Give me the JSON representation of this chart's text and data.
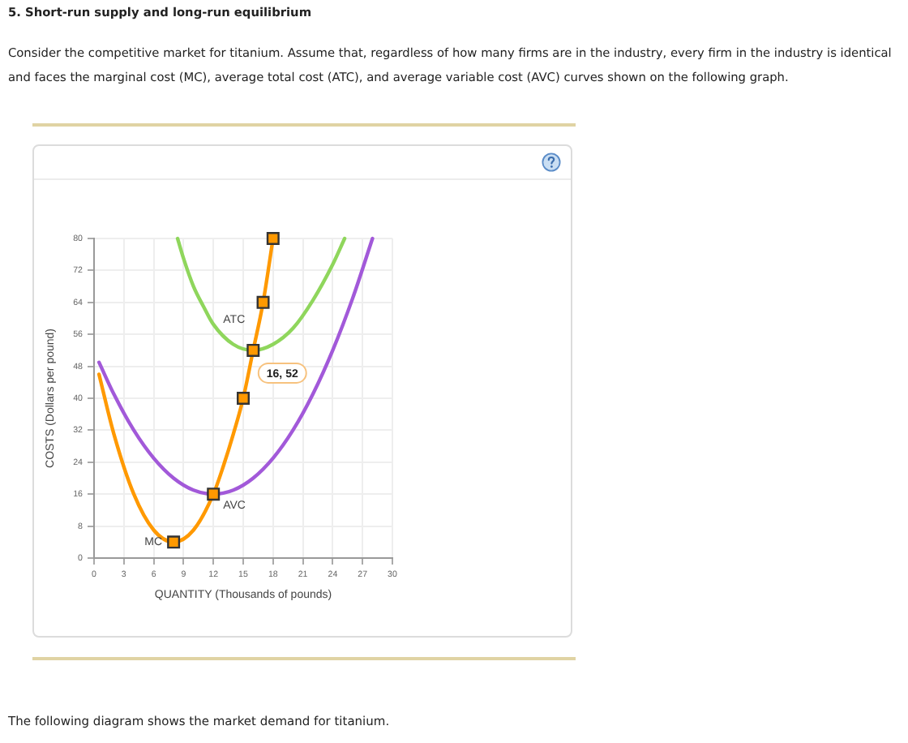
{
  "chart_data": {
    "type": "line",
    "title": "5. Short-run supply and long-run equilibrium",
    "subtitle": "Consider the competitive market for titanium. Assume that, regardless of how many firms are in the industry, every firm in the industry is identical and faces the marginal cost (MC), average total cost (ATC), and average variable cost (AVC) curves shown on the following graph.",
    "xlabel": "QUANTITY (Thousands of pounds)",
    "ylabel": "COSTS (Dollars per pound)",
    "xlim": [
      0,
      30
    ],
    "xticks": [
      0,
      3,
      6,
      9,
      12,
      15,
      18,
      21,
      24,
      27,
      30
    ],
    "ylim": [
      0,
      80
    ],
    "yticks": [
      0,
      8,
      16,
      24,
      32,
      40,
      48,
      56,
      64,
      72,
      80
    ],
    "grid": true,
    "marker": "none",
    "line_style": "solid",
    "series": [
      {
        "name": "MC",
        "color": "#ff9900",
        "x": [
          0.5,
          2,
          4,
          6,
          8,
          10,
          12,
          13,
          14,
          15,
          16,
          17,
          18
        ],
        "values": [
          46,
          31,
          16,
          7,
          4,
          7,
          16,
          23,
          31,
          40,
          52,
          64,
          80
        ]
      },
      {
        "name": "ATC",
        "color": "#8fd65c",
        "x": [
          8.4,
          9,
          10,
          11,
          12,
          14,
          16,
          18,
          20,
          22,
          24,
          25.2
        ],
        "values": [
          80,
          75,
          68,
          63,
          58.5,
          53.5,
          52,
          53.5,
          57.5,
          64.5,
          73.5,
          80
        ]
      },
      {
        "name": "AVC",
        "color": "#a259d9",
        "x": [
          0.5,
          2,
          4,
          6,
          8,
          10,
          12,
          14,
          16,
          18,
          20,
          22,
          24,
          26,
          28
        ],
        "values": [
          49,
          41,
          32,
          25,
          20,
          17,
          16,
          17,
          20,
          25,
          32,
          41,
          52,
          65,
          80
        ]
      },
      {
        "type": "scatter",
        "color": "#ff9900",
        "marker": "square",
        "x": [
          8,
          12,
          15,
          16,
          17,
          18
        ],
        "values": [
          4,
          16,
          40,
          52,
          64,
          80
        ]
      }
    ],
    "annotations": [
      {
        "text": "16, 52",
        "x": 16,
        "y": 52
      },
      "The following diagram shows the market demand for titanium."
    ]
  }
}
